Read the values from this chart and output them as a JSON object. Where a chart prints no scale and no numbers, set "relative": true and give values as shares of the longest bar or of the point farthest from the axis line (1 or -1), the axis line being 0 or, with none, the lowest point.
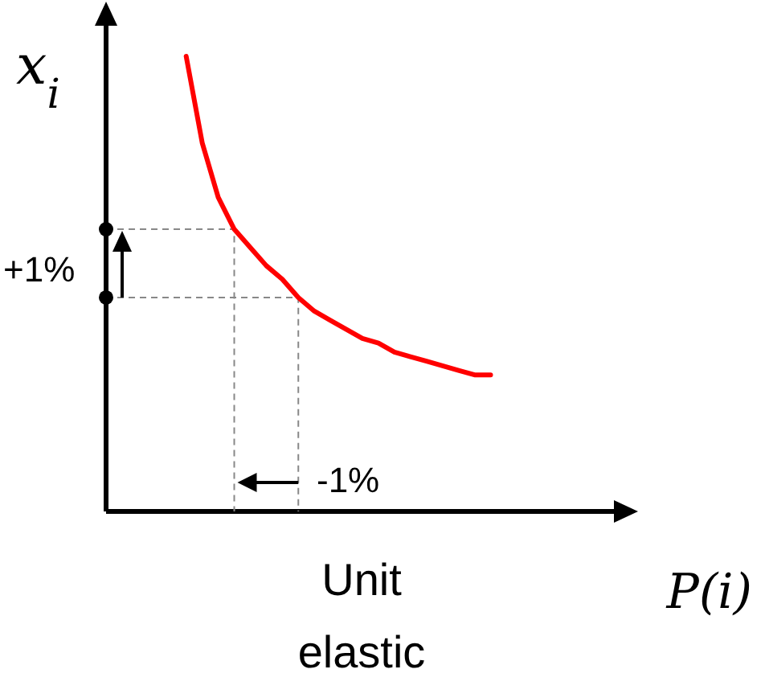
{
  "chart_data": {
    "type": "line",
    "relative": true,
    "xlabel": "P(i)",
    "ylabel": "x$_{i}$",
    "categories": [
      null,
      null,
      null,
      null,
      null,
      null,
      null,
      null,
      null,
      null,
      null,
      null,
      null,
      null,
      null,
      null,
      null,
      null,
      null,
      null,
      null,
      null,
      null,
      null,
      null,
      null,
      null,
      null,
      null,
      null,
      null,
      null,
      null
    ],
    "series": [
      {
        "color": "#ff0000",
        "values": [
          null,
          null,
          null,
          null,
          null,
          1,
          0.81,
          0.69,
          0.62,
          0.58,
          0.54,
          0.51,
          0.47,
          0.44,
          0.42,
          0.4,
          0.38,
          0.37,
          0.35,
          0.34,
          0.33,
          0.32,
          0.31,
          0.3,
          0.3,
          null,
          null,
          null,
          null,
          null,
          null,
          null,
          null
        ]
      }
    ],
    "annotations": [
      "+1%",
      "-1%",
      "Unit elastic"
    ],
    "line_style": "solid"
  }
}
